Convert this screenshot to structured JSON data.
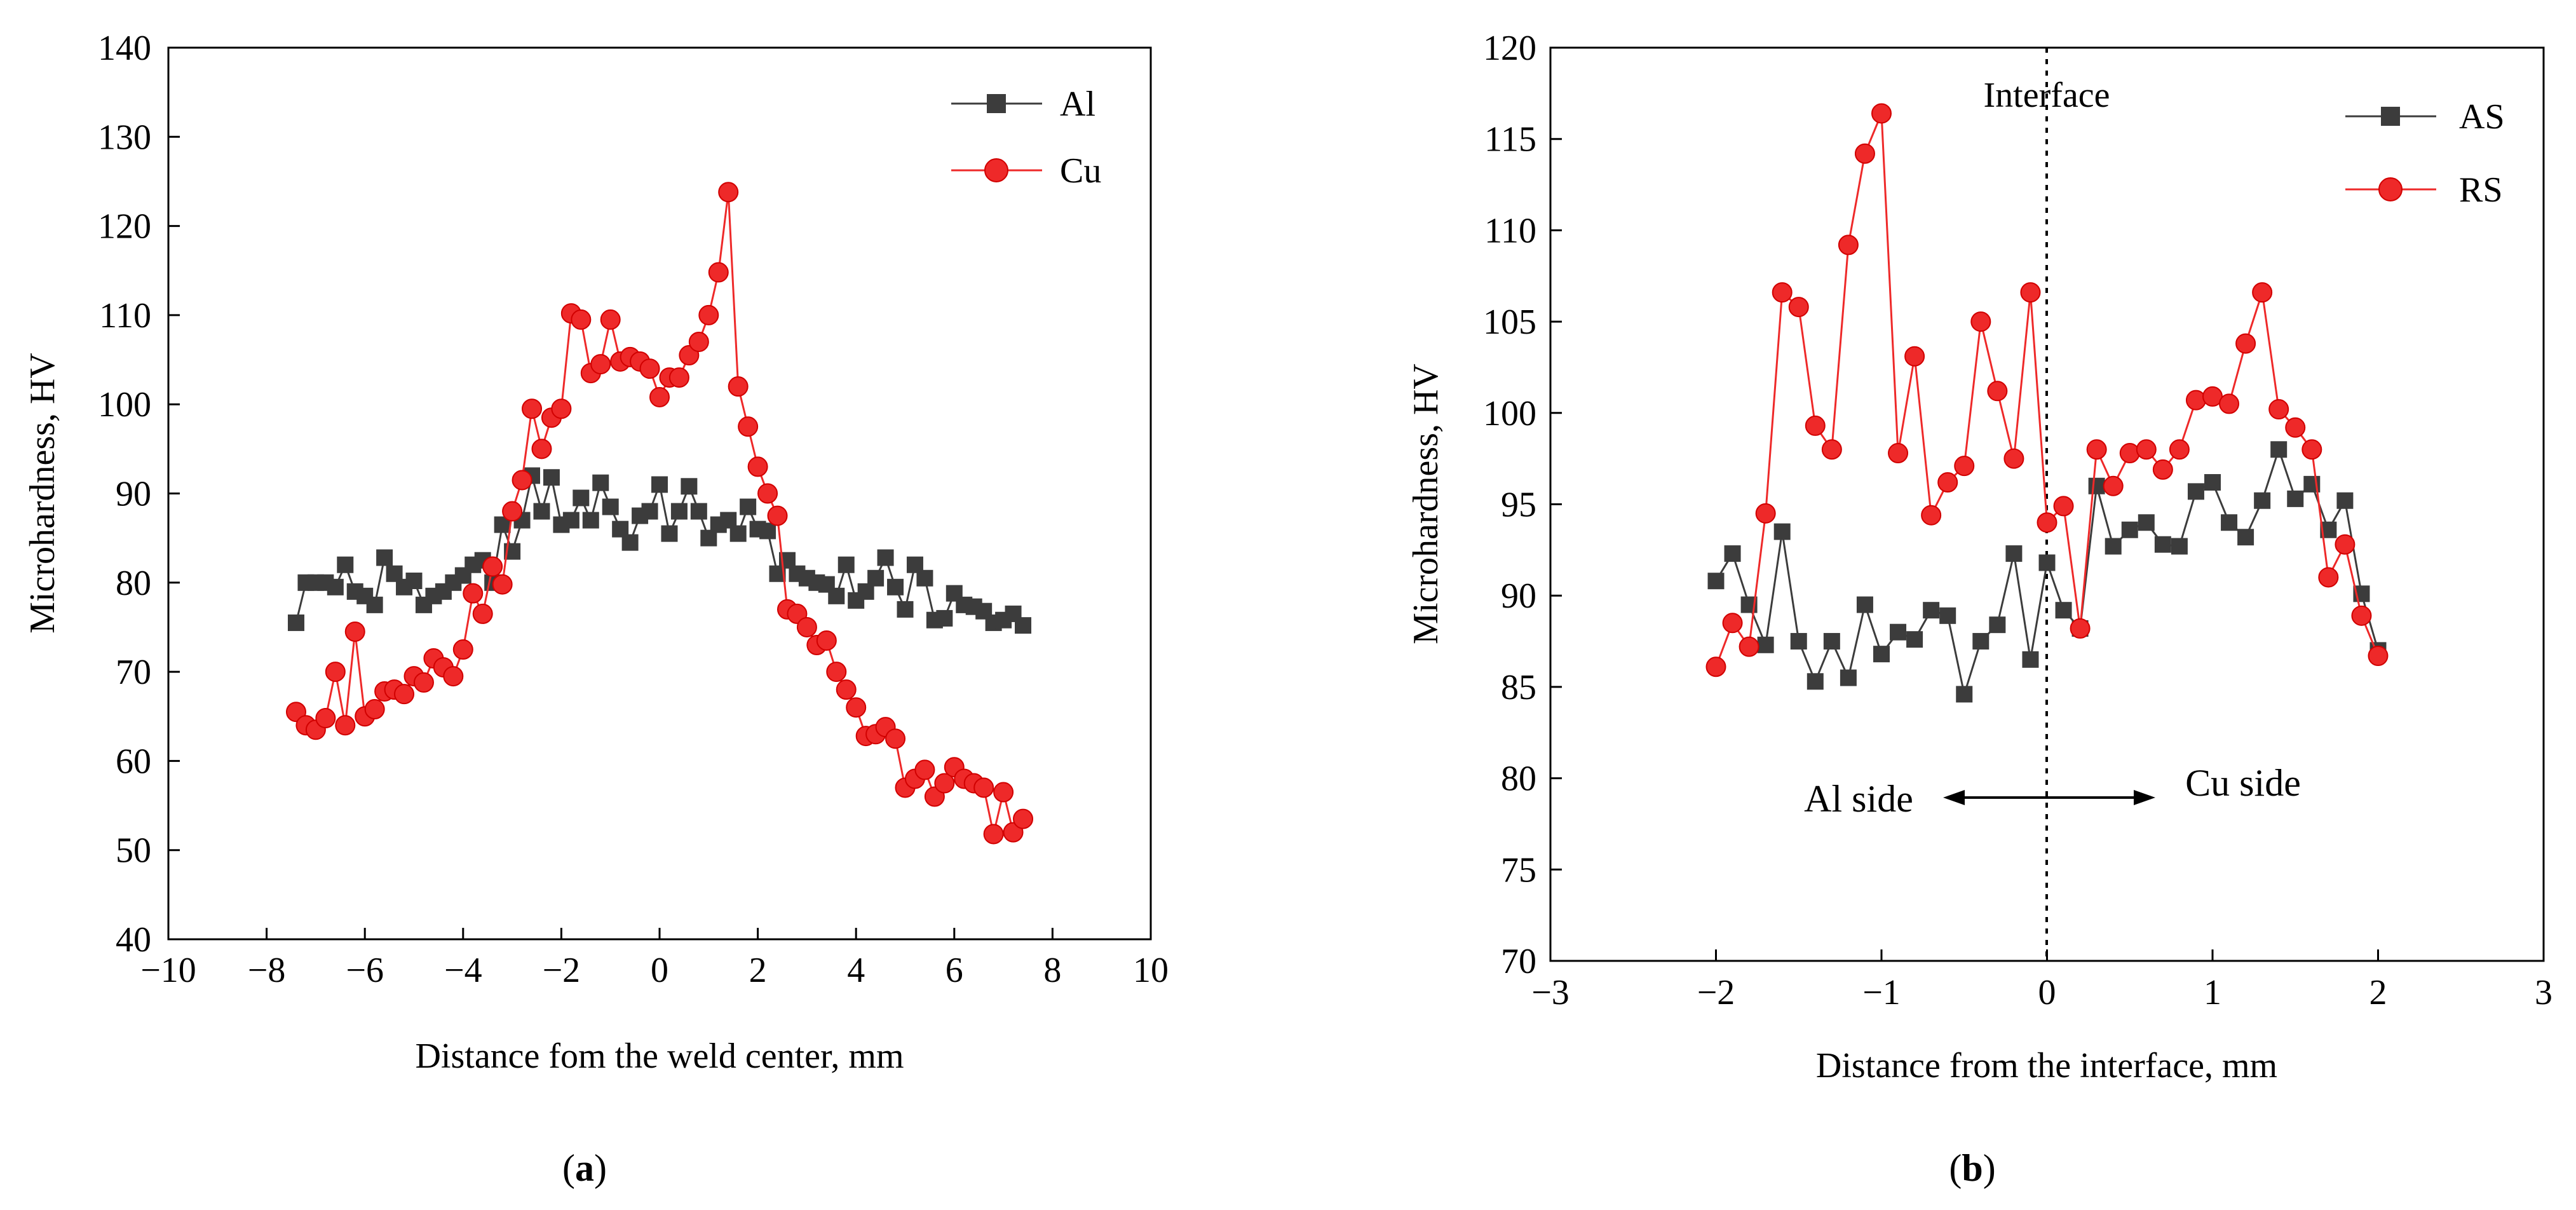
{
  "chart_data": [
    {
      "id": "a",
      "type": "line",
      "panel_label": "a",
      "xlabel": "Distance fom the weld center, mm",
      "ylabel": "Microhardness, HV",
      "xlim": [
        -10,
        10
      ],
      "ylim": [
        40,
        140
      ],
      "xticks": [
        "−10",
        "−8",
        "−6",
        "−4",
        "−2",
        "0",
        "2",
        "4",
        "6",
        "8",
        "10"
      ],
      "yticks": [
        "40",
        "50",
        "60",
        "70",
        "80",
        "90",
        "100",
        "110",
        "120",
        "130",
        "140"
      ],
      "legend_position": "top-right",
      "series": [
        {
          "name": "Al",
          "color": "#3c3c3c",
          "marker": "square",
          "x": [
            -7.4,
            -7.2,
            -7.0,
            -6.8,
            -6.6,
            -6.4,
            -6.2,
            -6.0,
            -5.8,
            -5.6,
            -5.4,
            -5.2,
            -5.0,
            -4.8,
            -4.6,
            -4.4,
            -4.2,
            -4.0,
            -3.8,
            -3.6,
            -3.4,
            -3.2,
            -3.0,
            -2.8,
            -2.6,
            -2.4,
            -2.2,
            -2.0,
            -1.8,
            -1.6,
            -1.4,
            -1.2,
            -1.0,
            -0.8,
            -0.6,
            -0.4,
            -0.2,
            0.0,
            0.2,
            0.4,
            0.6,
            0.8,
            1.0,
            1.2,
            1.4,
            1.6,
            1.8,
            2.0,
            2.2,
            2.4,
            2.6,
            2.8,
            3.0,
            3.2,
            3.4,
            3.6,
            3.8,
            4.0,
            4.2,
            4.4,
            4.6,
            4.8,
            5.0,
            5.2,
            5.4,
            5.6,
            5.8,
            6.0,
            6.2,
            6.4,
            6.6,
            6.8,
            7.0,
            7.2,
            7.4
          ],
          "y": [
            75.5,
            80.0,
            80.0,
            80.0,
            79.5,
            82.0,
            79.0,
            78.5,
            77.5,
            82.8,
            81.0,
            79.5,
            80.2,
            77.5,
            78.5,
            79.0,
            80.0,
            80.8,
            82.0,
            82.5,
            80.0,
            86.5,
            83.5,
            87.0,
            92.0,
            88.0,
            91.8,
            86.5,
            87.0,
            89.5,
            87.0,
            91.2,
            88.5,
            86.0,
            84.5,
            87.5,
            88.0,
            91.0,
            85.5,
            88.0,
            90.8,
            88.0,
            85.0,
            86.5,
            87.0,
            85.5,
            88.5,
            86.0,
            85.8,
            81.0,
            82.5,
            81.0,
            80.5,
            80.0,
            79.8,
            78.5,
            82.0,
            78.0,
            79.0,
            80.5,
            82.8,
            79.5,
            77.0,
            82.0,
            80.5,
            75.8,
            76.0,
            78.8,
            77.5,
            77.3,
            76.8,
            75.5,
            75.8,
            76.5,
            75.2
          ]
        },
        {
          "name": "Cu",
          "color": "#ee2929",
          "marker": "circle",
          "x": [
            -7.4,
            -7.2,
            -7.0,
            -6.8,
            -6.6,
            -6.4,
            -6.2,
            -6.0,
            -5.8,
            -5.6,
            -5.4,
            -5.2,
            -5.0,
            -4.8,
            -4.6,
            -4.4,
            -4.2,
            -4.0,
            -3.8,
            -3.6,
            -3.4,
            -3.2,
            -3.0,
            -2.8,
            -2.6,
            -2.4,
            -2.2,
            -2.0,
            -1.8,
            -1.6,
            -1.4,
            -1.2,
            -1.0,
            -0.8,
            -0.6,
            -0.4,
            -0.2,
            0.0,
            0.2,
            0.4,
            0.6,
            0.8,
            1.0,
            1.2,
            1.4,
            1.6,
            1.8,
            2.0,
            2.2,
            2.4,
            2.6,
            2.8,
            3.0,
            3.2,
            3.4,
            3.6,
            3.8,
            4.0,
            4.2,
            4.4,
            4.6,
            4.8,
            5.0,
            5.2,
            5.4,
            5.6,
            5.8,
            6.0,
            6.2,
            6.4,
            6.6,
            6.8,
            7.0,
            7.2,
            7.4
          ],
          "y": [
            65.5,
            64.0,
            63.5,
            64.8,
            70.0,
            64.0,
            74.5,
            65.0,
            65.8,
            67.8,
            68.0,
            67.5,
            69.5,
            68.8,
            71.5,
            70.5,
            69.5,
            72.5,
            78.8,
            76.5,
            81.8,
            79.8,
            88.0,
            91.5,
            99.5,
            95.0,
            98.5,
            99.5,
            110.2,
            109.5,
            103.5,
            104.5,
            109.5,
            104.8,
            105.3,
            104.8,
            104.0,
            100.8,
            103.0,
            103.0,
            105.5,
            107.0,
            110.0,
            114.8,
            123.8,
            102.0,
            97.5,
            93.0,
            90.0,
            87.5,
            77.0,
            76.5,
            75.0,
            73.0,
            73.5,
            70.0,
            68.0,
            66.0,
            62.8,
            63.0,
            63.8,
            62.5,
            57.0,
            58.0,
            59.0,
            56.0,
            57.5,
            59.3,
            58.0,
            57.5,
            57.0,
            51.8,
            56.5,
            52.0,
            53.5
          ]
        }
      ]
    },
    {
      "id": "b",
      "type": "line",
      "panel_label": "b",
      "xlabel": "Distance from the interface, mm",
      "ylabel": "Microhardness, HV",
      "xlim": [
        -3,
        3
      ],
      "ylim": [
        70,
        120
      ],
      "xticks": [
        "−3",
        "−2",
        "−1",
        "0",
        "1",
        "2",
        "3"
      ],
      "yticks": [
        "70",
        "75",
        "80",
        "85",
        "90",
        "95",
        "100",
        "105",
        "110",
        "115",
        "120"
      ],
      "legend_position": "top-right",
      "annotations": {
        "interface_label": "Interface",
        "left_side_label": "Al side",
        "right_side_label": "Cu side",
        "interface_x": 0
      },
      "series": [
        {
          "name": "AS",
          "color": "#3c3c3c",
          "marker": "square",
          "x": [
            -2.0,
            -1.9,
            -1.8,
            -1.7,
            -1.6,
            -1.5,
            -1.4,
            -1.3,
            -1.2,
            -1.1,
            -1.0,
            -0.9,
            -0.8,
            -0.7,
            -0.6,
            -0.5,
            -0.4,
            -0.3,
            -0.2,
            -0.1,
            0.0,
            0.1,
            0.2,
            0.3,
            0.4,
            0.5,
            0.6,
            0.7,
            0.8,
            0.9,
            1.0,
            1.1,
            1.2,
            1.3,
            1.4,
            1.5,
            1.6,
            1.7,
            1.8,
            1.9,
            2.0
          ],
          "y": [
            90.8,
            92.3,
            89.5,
            87.3,
            93.5,
            87.5,
            85.3,
            87.5,
            85.5,
            89.5,
            86.8,
            88.0,
            87.6,
            89.2,
            88.9,
            84.6,
            87.5,
            88.4,
            92.3,
            86.5,
            91.8,
            89.2,
            88.2,
            96.0,
            92.7,
            93.6,
            94.0,
            92.8,
            92.7,
            95.7,
            96.2,
            94.0,
            93.2,
            95.2,
            98.0,
            95.3,
            96.1,
            93.6,
            95.2,
            90.1,
            87.0
          ]
        },
        {
          "name": "RS",
          "color": "#ee2929",
          "marker": "circle",
          "x": [
            -2.0,
            -1.9,
            -1.8,
            -1.7,
            -1.6,
            -1.5,
            -1.4,
            -1.3,
            -1.2,
            -1.1,
            -1.0,
            -0.9,
            -0.8,
            -0.7,
            -0.6,
            -0.5,
            -0.4,
            -0.3,
            -0.2,
            -0.1,
            0.0,
            0.1,
            0.2,
            0.3,
            0.4,
            0.5,
            0.6,
            0.7,
            0.8,
            0.9,
            1.0,
            1.1,
            1.2,
            1.3,
            1.4,
            1.5,
            1.6,
            1.7,
            1.8,
            1.9,
            2.0
          ],
          "y": [
            86.1,
            88.5,
            87.2,
            94.5,
            106.6,
            105.8,
            99.3,
            98.0,
            109.2,
            114.2,
            116.4,
            97.8,
            103.1,
            94.4,
            96.2,
            97.1,
            105.0,
            101.2,
            97.5,
            106.6,
            94.0,
            94.9,
            88.2,
            98.0,
            96.0,
            97.8,
            98.0,
            96.9,
            98.0,
            100.7,
            100.9,
            100.5,
            103.8,
            106.6,
            100.2,
            99.2,
            98.0,
            91.0,
            92.8,
            88.9,
            86.7
          ]
        }
      ]
    }
  ]
}
